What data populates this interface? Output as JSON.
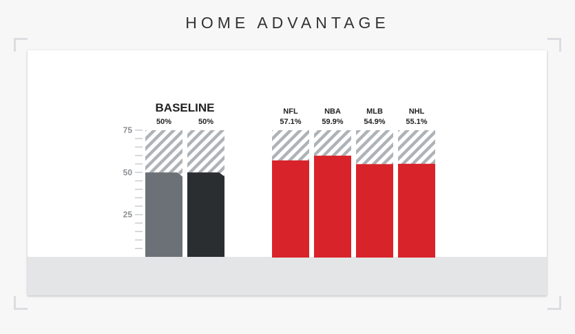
{
  "title": "HOME ADVANTAGE",
  "chart_data": {
    "type": "bar",
    "ylim": [
      0,
      75
    ],
    "yticks": [
      25,
      50,
      75
    ],
    "groups": [
      {
        "title": "BASELINE",
        "bars": [
          {
            "label": "",
            "value_label": "50%",
            "value": 50,
            "color": "#6b7176"
          },
          {
            "label": "",
            "value_label": "50%",
            "value": 50,
            "color": "#2b2e31"
          }
        ]
      },
      {
        "title": "",
        "bars": [
          {
            "label": "NFL",
            "value_label": "57.1%",
            "value": 57.1,
            "color": "#d9232a"
          },
          {
            "label": "NBA",
            "value_label": "59.9%",
            "value": 59.9,
            "color": "#d9232a"
          },
          {
            "label": "MLB",
            "value_label": "54.9%",
            "value": 54.9,
            "color": "#d9232a"
          },
          {
            "label": "NHL",
            "value_label": "55.1%",
            "value": 55.1,
            "color": "#d9232a"
          }
        ]
      }
    ]
  },
  "colors": {
    "hatch": "#aeb3b7",
    "axis_text": "#8a8f93",
    "baseline_title": "#222222",
    "floor": "#e3e5e7"
  }
}
